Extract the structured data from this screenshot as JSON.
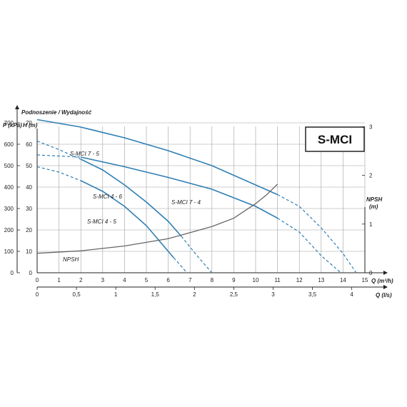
{
  "chart_data": {
    "type": "line",
    "title": "S-MCI",
    "header_label": "Podnoszenie / Wydajność",
    "left_axes": {
      "pressure": {
        "label": "P (kPa)",
        "ticks": [
          "0",
          "100",
          "200",
          "300",
          "400",
          "500",
          "600",
          "700"
        ]
      },
      "head": {
        "label": "H (m)",
        "ticks": [
          "0",
          "10",
          "20",
          "30",
          "40",
          "50",
          "60",
          "70"
        ]
      },
      "ylim": [
        0,
        75
      ]
    },
    "right_axis": {
      "label_line1": "NPSH",
      "label_line2": "(m)",
      "ticks": [
        "0",
        "1",
        "2",
        "3"
      ],
      "range": [
        0,
        3.3
      ]
    },
    "x_axis_m3h": {
      "label": "Q (m³/h)",
      "ticks": [
        "0",
        "1",
        "2",
        "3",
        "4",
        "5",
        "6",
        "7",
        "8",
        "9",
        "10",
        "11",
        "12",
        "13",
        "14",
        "15"
      ],
      "xlim": [
        0,
        15
      ]
    },
    "x_axis_ls": {
      "label": "Q (l/s)",
      "ticks": [
        "0",
        "0,5",
        "1",
        "1,5",
        "2",
        "2,5",
        "3",
        "3,5",
        "4"
      ],
      "values": [
        0,
        0.5,
        1,
        1.5,
        2,
        2.5,
        3,
        3.5,
        4
      ]
    },
    "grid": true,
    "series": [
      {
        "name": "S-MCI 7 - 5",
        "solid": [
          [
            0,
            71.5
          ],
          [
            2,
            68
          ],
          [
            4,
            63
          ],
          [
            6,
            57
          ],
          [
            8,
            50
          ],
          [
            10,
            41
          ],
          [
            11,
            36.5
          ]
        ],
        "dashed_before": [
          [
            0,
            71.5
          ]
        ],
        "dashed_after": [
          [
            11,
            36.5
          ],
          [
            12,
            31
          ],
          [
            13,
            21
          ],
          [
            14,
            9
          ],
          [
            14.6,
            0
          ]
        ]
      },
      {
        "name": "S-MCI 7 - 4",
        "solid": [
          [
            2,
            54
          ],
          [
            4,
            49.5
          ],
          [
            6,
            44.5
          ],
          [
            8,
            39
          ],
          [
            10,
            31
          ],
          [
            11,
            25.5
          ]
        ],
        "dashed_before": [
          [
            0,
            55
          ],
          [
            1,
            54.5
          ],
          [
            2,
            54
          ]
        ],
        "dashed_after": [
          [
            11,
            25.5
          ],
          [
            12,
            19
          ],
          [
            13,
            8
          ],
          [
            13.9,
            0
          ]
        ]
      },
      {
        "name": "S-MCI 4 - 6",
        "solid": [
          [
            2,
            53
          ],
          [
            3,
            48
          ],
          [
            4,
            41
          ],
          [
            5,
            33
          ],
          [
            6,
            24
          ],
          [
            6.6,
            17
          ]
        ],
        "dashed_before": [
          [
            0,
            61.5
          ],
          [
            1,
            57.5
          ],
          [
            2,
            53
          ]
        ],
        "dashed_after": [
          [
            6.6,
            17
          ],
          [
            7.4,
            7
          ],
          [
            8,
            0
          ]
        ]
      },
      {
        "name": "S-MCI 4 - 5",
        "solid": [
          [
            2,
            43
          ],
          [
            3,
            38
          ],
          [
            4,
            31
          ],
          [
            5,
            22
          ],
          [
            6,
            10
          ],
          [
            6.25,
            7
          ]
        ],
        "dashed_before": [
          [
            0,
            49.5
          ],
          [
            1,
            47
          ],
          [
            2,
            43
          ]
        ],
        "dashed_after": [
          [
            6.25,
            7
          ],
          [
            6.6,
            3
          ],
          [
            6.85,
            0
          ]
        ]
      }
    ],
    "npsh": {
      "name": "NPSH",
      "points": [
        [
          0,
          0.4
        ],
        [
          2,
          0.45
        ],
        [
          4,
          0.55
        ],
        [
          6,
          0.7
        ],
        [
          8,
          0.95
        ],
        [
          9,
          1.12
        ],
        [
          10,
          1.42
        ],
        [
          10.5,
          1.6
        ],
        [
          11,
          1.82
        ]
      ]
    }
  },
  "colors": {
    "pump_curve": "#2f7fb4",
    "npsh_curve": "#666666",
    "grid": "#a0a0a0",
    "axis": "#222222"
  }
}
